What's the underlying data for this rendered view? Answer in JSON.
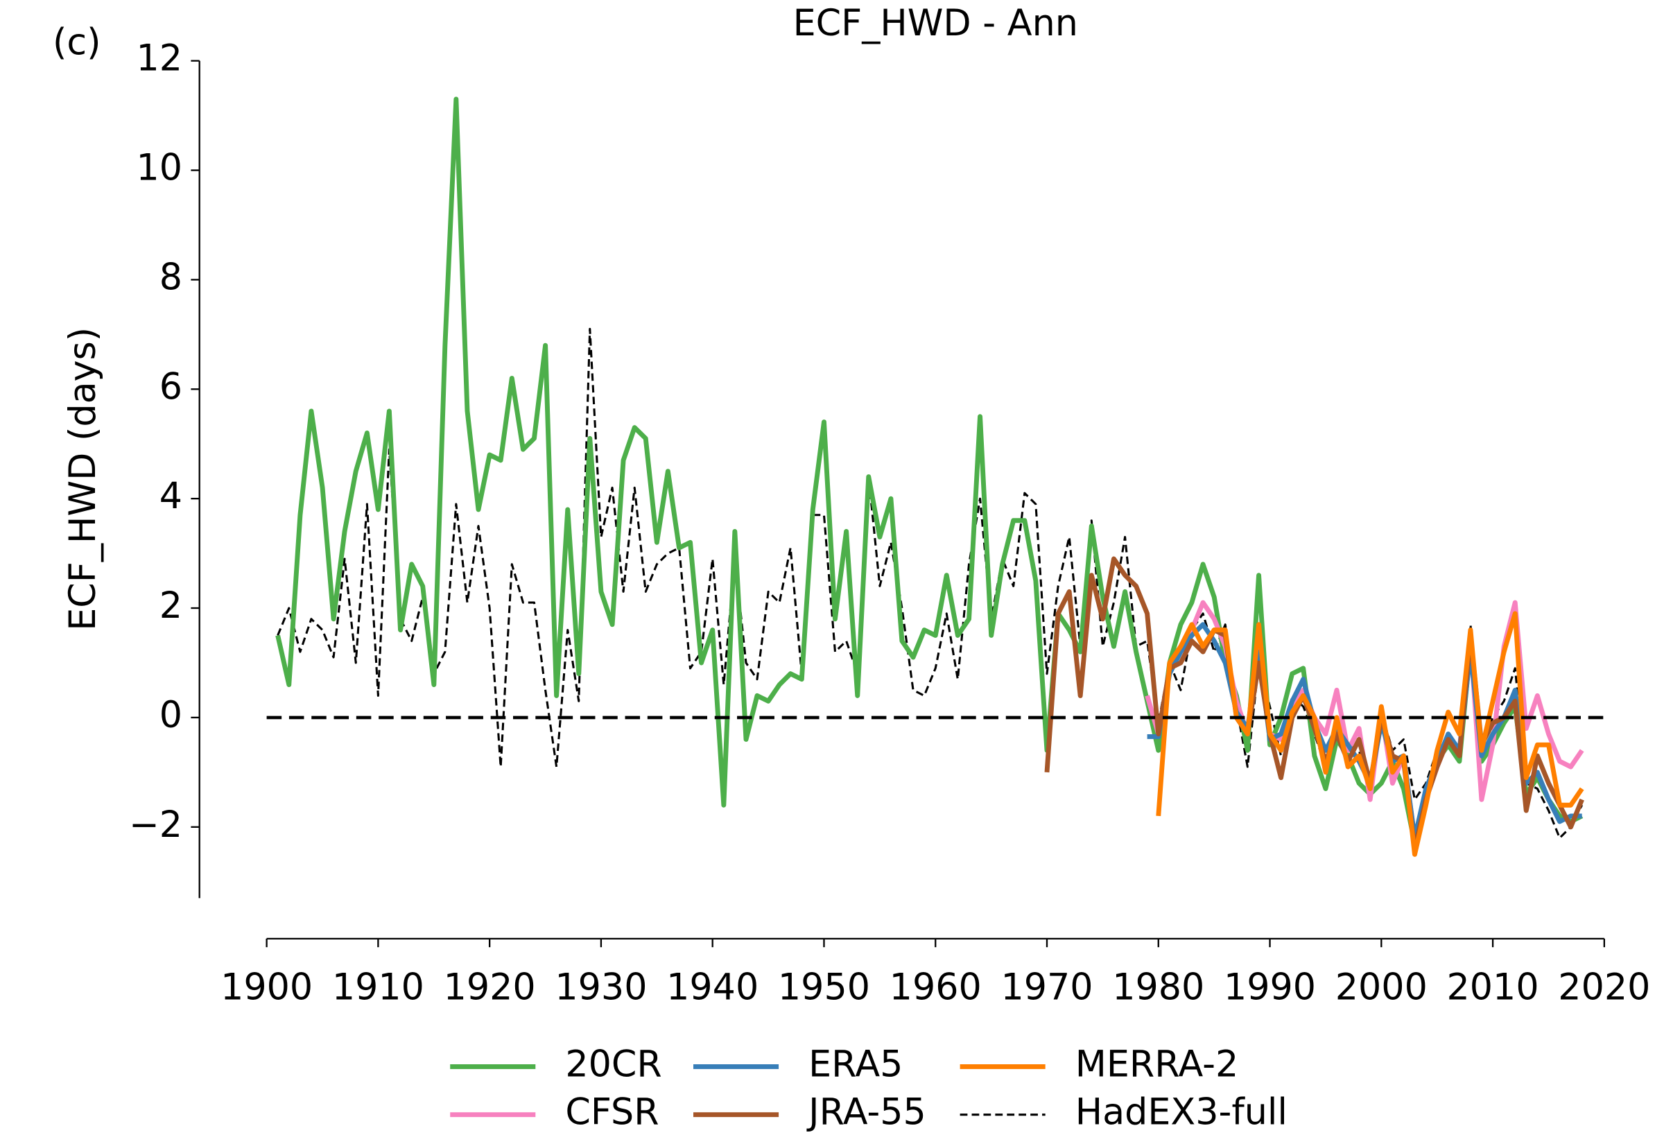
{
  "chart_data": {
    "type": "line",
    "panel_label": "(c)",
    "title": "ECF_HWD - Ann",
    "y_label": "ECF_HWD (days)",
    "xlim": [
      1900,
      2020
    ],
    "xticks": [
      1900,
      1910,
      1920,
      1930,
      1940,
      1950,
      1960,
      1970,
      1980,
      1990,
      2000,
      2010,
      2020
    ],
    "ylim": [
      -3.3,
      12
    ],
    "yticks": [
      {
        "value": -2,
        "label": "−2"
      },
      0,
      2,
      4,
      6,
      8,
      10,
      12
    ],
    "hlines": [
      0
    ],
    "x": [
      1901,
      1902,
      1903,
      1904,
      1905,
      1906,
      1907,
      1908,
      1909,
      1910,
      1911,
      1912,
      1913,
      1914,
      1915,
      1916,
      1917,
      1918,
      1919,
      1920,
      1921,
      1922,
      1923,
      1924,
      1925,
      1926,
      1927,
      1928,
      1929,
      1930,
      1931,
      1932,
      1933,
      1934,
      1935,
      1936,
      1937,
      1938,
      1939,
      1940,
      1941,
      1942,
      1943,
      1944,
      1945,
      1946,
      1947,
      1948,
      1949,
      1950,
      1951,
      1952,
      1953,
      1954,
      1955,
      1956,
      1957,
      1958,
      1959,
      1960,
      1961,
      1962,
      1963,
      1964,
      1965,
      1966,
      1967,
      1968,
      1969,
      1970,
      1971,
      1972,
      1973,
      1974,
      1975,
      1976,
      1977,
      1978,
      1979,
      1980,
      1981,
      1982,
      1983,
      1984,
      1985,
      1986,
      1987,
      1988,
      1989,
      1990,
      1991,
      1992,
      1993,
      1994,
      1995,
      1996,
      1997,
      1998,
      1999,
      2000,
      2001,
      2002,
      2003,
      2004,
      2005,
      2006,
      2007,
      2008,
      2009,
      2010,
      2011,
      2012,
      2013,
      2014,
      2015,
      2016,
      2017,
      2018
    ],
    "series": [
      {
        "name": "20CR",
        "color": "#4daf4a",
        "linestyle": "solid",
        "values": [
          1.5,
          0.6,
          3.7,
          5.6,
          4.2,
          1.8,
          3.4,
          4.5,
          5.2,
          3.8,
          5.6,
          1.6,
          2.8,
          2.4,
          0.6,
          6.8,
          11.3,
          5.6,
          3.8,
          4.8,
          4.7,
          6.2,
          4.9,
          5.1,
          6.8,
          0.4,
          3.8,
          0.8,
          5.1,
          2.3,
          1.7,
          4.7,
          5.3,
          5.1,
          3.2,
          4.5,
          3.1,
          3.2,
          1.0,
          1.6,
          -1.6,
          3.4,
          -0.4,
          0.4,
          0.3,
          0.6,
          0.8,
          0.7,
          3.8,
          5.4,
          1.8,
          3.4,
          0.4,
          4.4,
          3.3,
          4.0,
          1.4,
          1.1,
          1.6,
          1.5,
          2.6,
          1.5,
          1.8,
          5.5,
          1.5,
          2.8,
          3.6,
          3.6,
          2.5,
          -0.6,
          1.9,
          1.6,
          1.2,
          3.5,
          2.2,
          1.3,
          2.3,
          1.2,
          0.3,
          -0.6,
          1.0,
          1.7,
          2.1,
          2.8,
          2.2,
          1.0,
          0.4,
          -0.6,
          2.6,
          -0.5,
          0.0,
          0.8,
          0.9,
          -0.7,
          -1.3,
          -0.4,
          -0.7,
          -1.2,
          -1.4,
          -1.2,
          -0.8,
          -1.3,
          -2.3,
          -1.5,
          -0.8,
          -0.5,
          -0.8,
          1.3,
          -0.8,
          -0.5,
          -0.1,
          0.2,
          -1.4,
          -1.1,
          -1.5,
          -1.8,
          -1.9,
          -1.8
        ]
      },
      {
        "name": "CFSR",
        "color": "#f781bf",
        "linestyle": "solid",
        "values": [
          null,
          null,
          null,
          null,
          null,
          null,
          null,
          null,
          null,
          null,
          null,
          null,
          null,
          null,
          null,
          null,
          null,
          null,
          null,
          null,
          null,
          null,
          null,
          null,
          null,
          null,
          null,
          null,
          null,
          null,
          null,
          null,
          null,
          null,
          null,
          null,
          null,
          null,
          null,
          null,
          null,
          null,
          null,
          null,
          null,
          null,
          null,
          null,
          null,
          null,
          null,
          null,
          null,
          null,
          null,
          null,
          null,
          null,
          null,
          null,
          null,
          null,
          null,
          null,
          null,
          null,
          null,
          null,
          null,
          null,
          null,
          null,
          null,
          null,
          null,
          null,
          null,
          null,
          0.4,
          -0.3,
          0.9,
          1.3,
          1.6,
          2.1,
          1.8,
          1.3,
          0.3,
          -0.3,
          1.5,
          -0.3,
          -0.4,
          0.2,
          0.5,
          0.0,
          -0.3,
          0.5,
          -0.6,
          -0.2,
          -1.5,
          0.1,
          -1.2,
          -0.7,
          -2.2,
          -1.5,
          -0.9,
          -0.4,
          -0.6,
          1.4,
          -1.5,
          -0.5,
          1.3,
          2.1,
          -0.2,
          0.4,
          -0.3,
          -0.8,
          -0.9,
          -0.6
        ]
      },
      {
        "name": "ERA5",
        "color": "#377eb8",
        "linestyle": "solid",
        "values": [
          null,
          null,
          null,
          null,
          null,
          null,
          null,
          null,
          null,
          null,
          null,
          null,
          null,
          null,
          null,
          null,
          null,
          null,
          null,
          null,
          null,
          null,
          null,
          null,
          null,
          null,
          null,
          null,
          null,
          null,
          null,
          null,
          null,
          null,
          null,
          null,
          null,
          null,
          null,
          null,
          null,
          null,
          null,
          null,
          null,
          null,
          null,
          null,
          null,
          null,
          null,
          null,
          null,
          null,
          null,
          null,
          null,
          null,
          null,
          null,
          null,
          null,
          null,
          null,
          null,
          null,
          null,
          null,
          null,
          null,
          null,
          null,
          null,
          null,
          null,
          null,
          null,
          null,
          -0.35,
          -0.35,
          0.8,
          1.2,
          1.5,
          1.7,
          1.4,
          1.0,
          0.1,
          -0.2,
          1.2,
          -0.4,
          -0.3,
          0.3,
          0.7,
          -0.1,
          -0.6,
          -0.2,
          -0.5,
          -0.8,
          -1.2,
          -0.1,
          -0.8,
          -0.7,
          -2.2,
          -1.3,
          -0.8,
          -0.3,
          -0.6,
          1.2,
          -0.7,
          -0.3,
          0.0,
          0.5,
          -1.2,
          -1.0,
          -1.5,
          -1.9,
          -1.8,
          -1.8
        ]
      },
      {
        "name": "JRA-55",
        "color": "#a65628",
        "linestyle": "solid",
        "values": [
          null,
          null,
          null,
          null,
          null,
          null,
          null,
          null,
          null,
          null,
          null,
          null,
          null,
          null,
          null,
          null,
          null,
          null,
          null,
          null,
          null,
          null,
          null,
          null,
          null,
          null,
          null,
          null,
          null,
          null,
          null,
          null,
          null,
          null,
          null,
          null,
          null,
          null,
          null,
          null,
          null,
          null,
          null,
          null,
          null,
          null,
          null,
          null,
          null,
          null,
          null,
          null,
          null,
          null,
          null,
          null,
          null,
          null,
          null,
          null,
          null,
          null,
          null,
          null,
          null,
          null,
          null,
          null,
          null,
          -1.0,
          1.9,
          2.3,
          0.4,
          2.6,
          1.8,
          2.9,
          2.6,
          2.4,
          1.9,
          -0.3,
          0.9,
          1.0,
          1.4,
          1.2,
          1.6,
          1.5,
          0.0,
          -0.3,
          1.0,
          -0.3,
          -1.1,
          0.0,
          0.4,
          -0.2,
          -0.8,
          -0.3,
          -0.8,
          -0.4,
          -1.2,
          0.0,
          -0.7,
          -0.8,
          -2.4,
          -1.5,
          -0.9,
          -0.4,
          -0.7,
          1.5,
          -0.5,
          -0.1,
          0.0,
          0.3,
          -1.7,
          -0.7,
          -1.2,
          -1.6,
          -2.0,
          -1.5
        ]
      },
      {
        "name": "MERRA-2",
        "color": "#ff7f00",
        "linestyle": "solid",
        "values": [
          null,
          null,
          null,
          null,
          null,
          null,
          null,
          null,
          null,
          null,
          null,
          null,
          null,
          null,
          null,
          null,
          null,
          null,
          null,
          null,
          null,
          null,
          null,
          null,
          null,
          null,
          null,
          null,
          null,
          null,
          null,
          null,
          null,
          null,
          null,
          null,
          null,
          null,
          null,
          null,
          null,
          null,
          null,
          null,
          null,
          null,
          null,
          null,
          null,
          null,
          null,
          null,
          null,
          null,
          null,
          null,
          null,
          null,
          null,
          null,
          null,
          null,
          null,
          null,
          null,
          null,
          null,
          null,
          null,
          null,
          null,
          null,
          null,
          null,
          null,
          null,
          null,
          null,
          null,
          -1.8,
          1.0,
          1.3,
          1.7,
          1.3,
          1.6,
          1.6,
          0.0,
          -0.3,
          1.7,
          -0.3,
          -0.6,
          0.1,
          0.4,
          0.0,
          -1.0,
          0.0,
          -0.9,
          -0.7,
          -1.3,
          0.2,
          -1.0,
          -0.7,
          -2.5,
          -1.6,
          -0.6,
          0.1,
          -0.3,
          1.6,
          -0.6,
          0.3,
          1.2,
          1.9,
          -1.1,
          -0.5,
          -0.5,
          -1.6,
          -1.6,
          -1.3
        ]
      },
      {
        "name": "HadEX3-full",
        "color": "#000000",
        "linestyle": "dashed",
        "values": [
          1.5,
          2.0,
          1.2,
          1.8,
          1.6,
          1.1,
          2.9,
          1.0,
          3.9,
          0.4,
          4.9,
          1.8,
          1.4,
          2.2,
          0.8,
          1.2,
          3.9,
          2.1,
          3.5,
          2.0,
          -0.9,
          2.8,
          2.1,
          2.1,
          0.5,
          -0.9,
          1.6,
          0.3,
          7.1,
          3.3,
          4.2,
          2.3,
          4.2,
          2.3,
          2.8,
          3.0,
          3.1,
          0.9,
          1.2,
          2.9,
          0.6,
          2.9,
          1.0,
          0.7,
          2.3,
          2.1,
          3.1,
          0.8,
          3.7,
          3.7,
          1.2,
          1.4,
          0.8,
          4.4,
          2.4,
          3.2,
          2.0,
          0.5,
          0.4,
          0.9,
          1.9,
          0.7,
          2.8,
          4.0,
          1.8,
          2.9,
          2.4,
          4.1,
          3.9,
          0.8,
          2.4,
          3.3,
          1.3,
          3.6,
          1.3,
          2.1,
          3.3,
          1.3,
          1.4,
          -0.1,
          1.0,
          0.5,
          1.6,
          1.9,
          1.2,
          1.7,
          0.2,
          -0.9,
          1.0,
          0.2,
          -0.7,
          0.4,
          0.2,
          -0.3,
          -0.9,
          -0.2,
          -0.5,
          -0.6,
          -1.3,
          0.1,
          -0.6,
          -0.4,
          -1.5,
          -1.2,
          -0.6,
          -0.4,
          -0.6,
          1.7,
          -0.5,
          0.0,
          0.3,
          0.9,
          -1.2,
          -1.3,
          -1.7,
          -2.2,
          -2.0,
          -1.6
        ]
      }
    ]
  }
}
